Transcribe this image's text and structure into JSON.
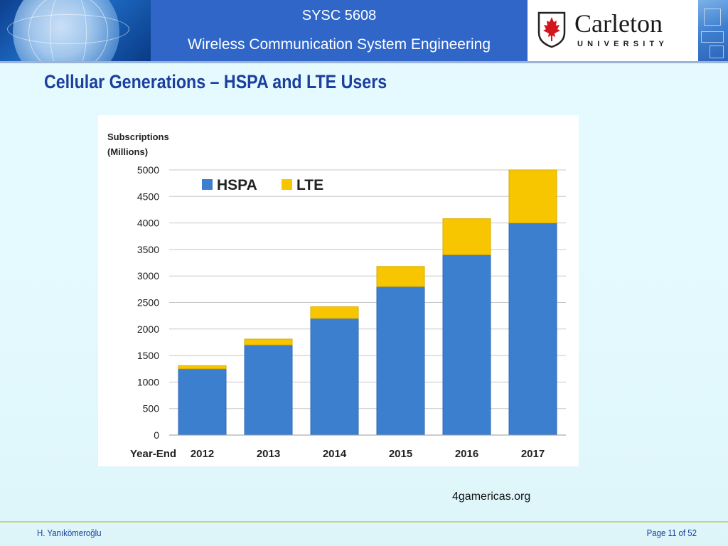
{
  "header": {
    "course": "SYSC 5608",
    "subtitle": "Wireless Communication System Engineering",
    "logo_name": "Carleton",
    "logo_sub": "UNIVERSITY"
  },
  "slide": {
    "title": "Cellular Generations – HSPA and LTE Users",
    "caption": "4gamericas.org"
  },
  "footer": {
    "author": "H. Yanıkömeroğlu",
    "page": "Page 11 of 52"
  },
  "colors": {
    "hspa": "#3d7fcf",
    "lte": "#f7c600",
    "title": "#1a3f9e",
    "header": "#2f66c8"
  },
  "chart_data": {
    "type": "bar",
    "stacked": true,
    "ylabel_lines": [
      "Subscriptions",
      "(Millions)"
    ],
    "xlabel": "Year-End",
    "categories": [
      "2012",
      "2013",
      "2014",
      "2015",
      "2016",
      "2017"
    ],
    "series": [
      {
        "name": "HSPA",
        "values": [
          1250,
          1700,
          2200,
          2800,
          3400,
          4000
        ]
      },
      {
        "name": "LTE",
        "values": [
          60,
          110,
          220,
          380,
          680,
          1000
        ]
      }
    ],
    "ylim": [
      0,
      5000
    ],
    "yticks": [
      0,
      500,
      1000,
      1500,
      2000,
      2500,
      3000,
      3500,
      4000,
      4500,
      5000
    ],
    "grid": true,
    "legend": "top-left inside"
  }
}
